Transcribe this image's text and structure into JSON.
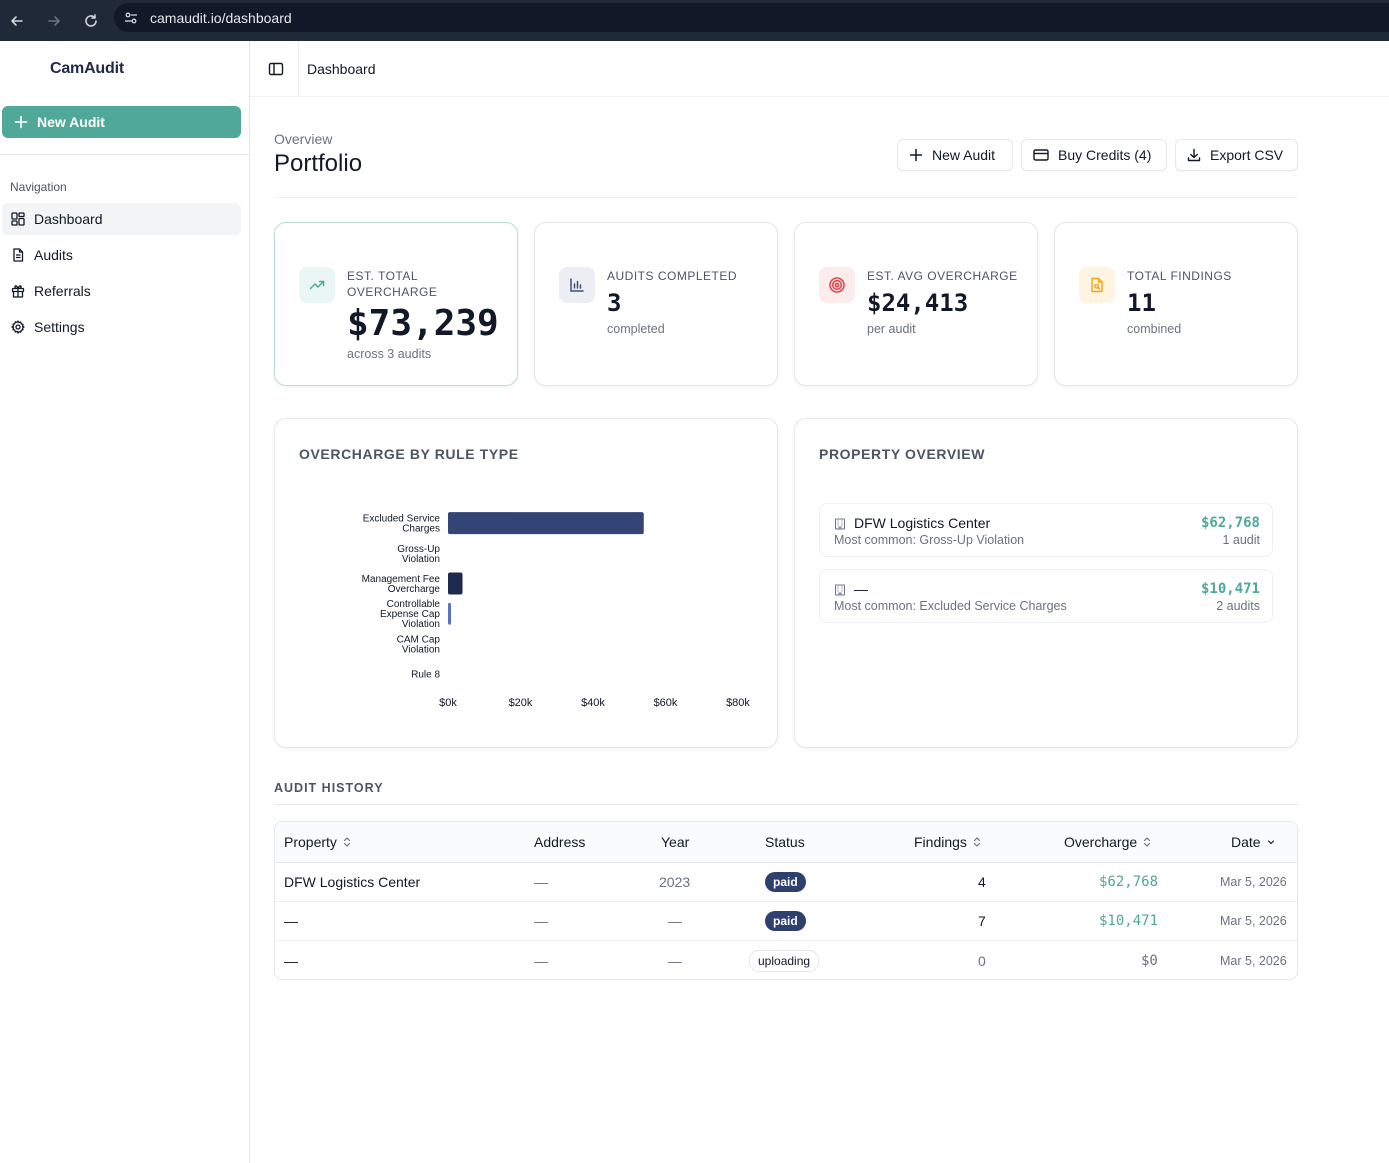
{
  "browser": {
    "url": "camaudit.io/dashboard"
  },
  "sidebar": {
    "brand": "CamAudit",
    "new_audit_label": "New Audit",
    "nav_heading": "Navigation",
    "items": [
      {
        "label": "Dashboard",
        "icon": "dashboard-grid-icon",
        "active": true
      },
      {
        "label": "Audits",
        "icon": "document-icon",
        "active": false
      },
      {
        "label": "Referrals",
        "icon": "gift-icon",
        "active": false
      },
      {
        "label": "Settings",
        "icon": "gear-icon",
        "active": false
      }
    ]
  },
  "topbar": {
    "breadcrumb": "Dashboard"
  },
  "header": {
    "overview": "Overview",
    "title": "Portfolio",
    "buttons": {
      "new_audit": "New Audit",
      "buy_credits": "Buy Credits (4)",
      "export_csv": "Export CSV"
    }
  },
  "stats": [
    {
      "label": "EST. TOTAL OVERCHARGE",
      "value": "$73,239",
      "sub": "across 3 audits",
      "icon": "trending-up-icon",
      "icon_color": "#4fa898",
      "icon_bg": "#eaf6f3"
    },
    {
      "label": "AUDITS COMPLETED",
      "value": "3",
      "sub": "completed",
      "icon": "bar-chart-icon",
      "icon_color": "#3f4d75",
      "icon_bg": "#eceef4"
    },
    {
      "label": "EST. AVG OVERCHARGE",
      "value": "$24,413",
      "sub": "per audit",
      "icon": "target-icon",
      "icon_color": "#e0484f",
      "icon_bg": "#fdecec"
    },
    {
      "label": "TOTAL FINDINGS",
      "value": "11",
      "sub": "combined",
      "icon": "file-search-icon",
      "icon_color": "#f2a516",
      "icon_bg": "#fef4e2"
    }
  ],
  "chart_panel": {
    "title": "OVERCHARGE BY RULE TYPE"
  },
  "chart_data": {
    "type": "bar",
    "orientation": "horizontal",
    "categories": [
      [
        "Excluded Service",
        "Charges"
      ],
      [
        "Gross-Up",
        "Violation"
      ],
      [
        "Management Fee",
        "Overcharge"
      ],
      [
        "Controllable",
        "Expense Cap",
        "Violation"
      ],
      [
        "CAM Cap",
        "Violation"
      ],
      [
        "Rule 8"
      ]
    ],
    "values": [
      54000,
      0,
      4000,
      800,
      0,
      0
    ],
    "bar_colors": [
      "#344575",
      "#344575",
      "#1e2a4d",
      "#5b74c2",
      "#344575",
      "#344575"
    ],
    "xlim": [
      0,
      80000
    ],
    "xticks": [
      "$0k",
      "$20k",
      "$40k",
      "$60k",
      "$80k"
    ],
    "xtick_values": [
      0,
      20000,
      40000,
      60000,
      80000
    ],
    "grid": false
  },
  "property_panel": {
    "title": "PROPERTY OVERVIEW",
    "rows": [
      {
        "name": "DFW Logistics Center",
        "common": "Most common: Gross-Up Violation",
        "amount": "$62,768",
        "count": "1 audit"
      },
      {
        "name": "—",
        "common": "Most common: Excluded Service Charges",
        "amount": "$10,471",
        "count": "2 audits"
      }
    ]
  },
  "audit_history": {
    "title": "AUDIT HISTORY",
    "columns": [
      "Property",
      "Address",
      "Year",
      "Status",
      "Findings",
      "Overcharge",
      "Date"
    ],
    "rows": [
      {
        "property": "DFW Logistics Center",
        "address": "—",
        "year": "2023",
        "status": "paid",
        "findings": "4",
        "overcharge": "$62,768",
        "date": "Mar 5, 2026"
      },
      {
        "property": "—",
        "address": "—",
        "year": "—",
        "status": "paid",
        "findings": "7",
        "overcharge": "$10,471",
        "date": "Mar 5, 2026"
      },
      {
        "property": "—",
        "address": "—",
        "year": "—",
        "status": "uploading",
        "findings": "0",
        "overcharge": "$0",
        "date": "Mar 5, 2026"
      }
    ]
  },
  "colors": {
    "accent": "#4fa898",
    "navy": "#2f3f6e"
  }
}
